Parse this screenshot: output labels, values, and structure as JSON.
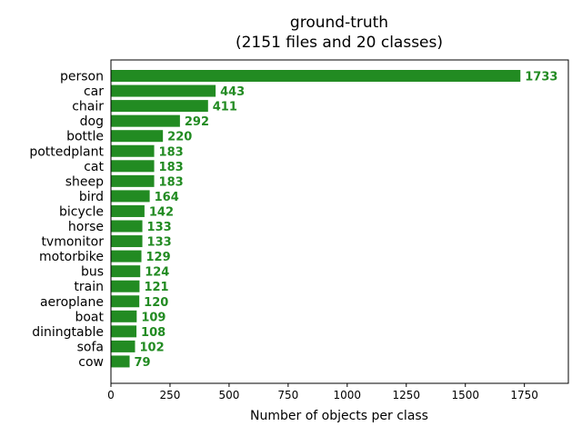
{
  "chart_data": {
    "type": "bar",
    "orientation": "horizontal",
    "title": "ground-truth",
    "subtitle": "(2151 files and 20 classes)",
    "xlabel": "Number of objects per class",
    "ylabel": "",
    "categories": [
      "person",
      "car",
      "chair",
      "dog",
      "bottle",
      "pottedplant",
      "cat",
      "sheep",
      "bird",
      "bicycle",
      "horse",
      "tvmonitor",
      "motorbike",
      "bus",
      "train",
      "aeroplane",
      "boat",
      "diningtable",
      "sofa",
      "cow"
    ],
    "values": [
      1733,
      443,
      411,
      292,
      220,
      183,
      183,
      183,
      164,
      142,
      133,
      133,
      129,
      124,
      121,
      120,
      109,
      108,
      102,
      79
    ],
    "xlim": [
      0,
      1936
    ],
    "xticks": [
      0,
      250,
      500,
      750,
      1000,
      1250,
      1500,
      1750
    ],
    "bar_color": "#228b22",
    "label_color": "#228b22",
    "grid": false,
    "legend": "none"
  }
}
